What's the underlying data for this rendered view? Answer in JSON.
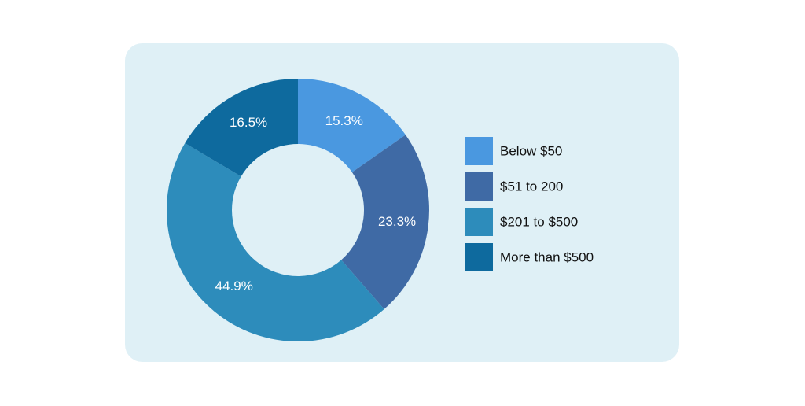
{
  "chart_data": {
    "type": "donut",
    "categories": [
      "Below $50",
      "$51 to 200",
      "$201 to $500",
      "More than $500"
    ],
    "values": [
      15.3,
      23.3,
      44.9,
      16.5
    ],
    "value_labels": [
      "15.3%",
      "23.3%",
      "44.9%",
      "16.5%"
    ],
    "colors": [
      "#4a98e0",
      "#3f6aa5",
      "#2d8cbb",
      "#0e6a9e"
    ]
  }
}
